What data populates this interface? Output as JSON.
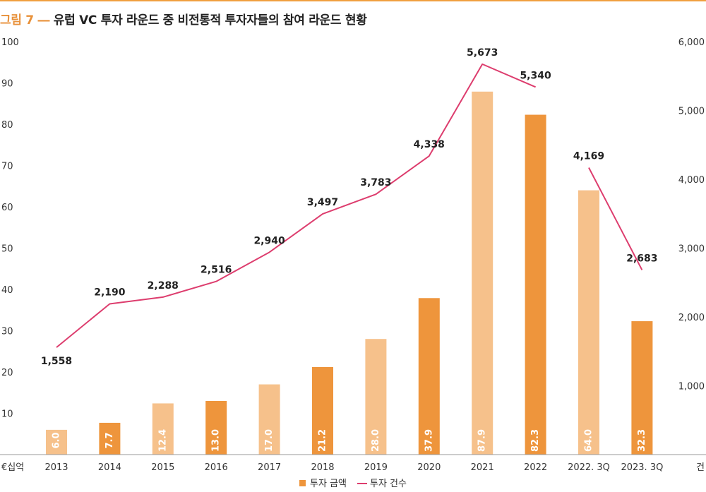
{
  "title_prefix": "그림 7 ―",
  "title": "유럽 VC 투자 라운드 중 비전통적 투자자들의 참여 라운드 현황",
  "colors": {
    "bar_dark": "#ee953c",
    "bar_light": "#f6c18b",
    "line": "#dd3d6e",
    "accent": "#f0a040"
  },
  "chart_data": {
    "type": "bar",
    "categories": [
      "2013",
      "2014",
      "2015",
      "2016",
      "2017",
      "2018",
      "2019",
      "2020",
      "2021",
      "2022",
      "2022. 3Q",
      "2023. 3Q"
    ],
    "series": [
      {
        "name": "투자 금액",
        "type": "bar",
        "axis": "left",
        "values": [
          6.0,
          7.7,
          12.4,
          13.0,
          17.0,
          21.2,
          28.0,
          37.9,
          87.9,
          82.3,
          64.0,
          32.3
        ],
        "labels": [
          "6.0",
          "7.7",
          "12.4",
          "13.0",
          "17.0",
          "21.2",
          "28.0",
          "37.9",
          "87.9",
          "82.3",
          "64.0",
          "32.3"
        ],
        "shade": [
          "light",
          "dark",
          "light",
          "dark",
          "light",
          "dark",
          "light",
          "dark",
          "light",
          "dark",
          "light",
          "dark"
        ]
      },
      {
        "name": "투자 건수",
        "type": "line",
        "axis": "right",
        "values": [
          1558,
          2190,
          2288,
          2516,
          2940,
          3497,
          3783,
          4338,
          5673,
          5340,
          4169,
          2683
        ],
        "labels": [
          "1,558",
          "2,190",
          "2,288",
          "2,516",
          "2,940",
          "3,497",
          "3,783",
          "4,338",
          "5,673",
          "5,340",
          "4,169",
          "2,683"
        ],
        "segments": [
          [
            0,
            9
          ],
          [
            10,
            11
          ]
        ]
      }
    ],
    "y_left": {
      "unit": "€십억",
      "ticks": [
        "10",
        "20",
        "30",
        "40",
        "50",
        "60",
        "70",
        "80",
        "90",
        "100"
      ],
      "range": [
        0,
        100
      ]
    },
    "y_right": {
      "unit": "건",
      "ticks": [
        "1,000",
        "2,000",
        "3,000",
        "4,000",
        "5,000",
        "6,000"
      ],
      "range": [
        0,
        6000
      ]
    },
    "grid": false,
    "legend_position": "bottom-center"
  }
}
